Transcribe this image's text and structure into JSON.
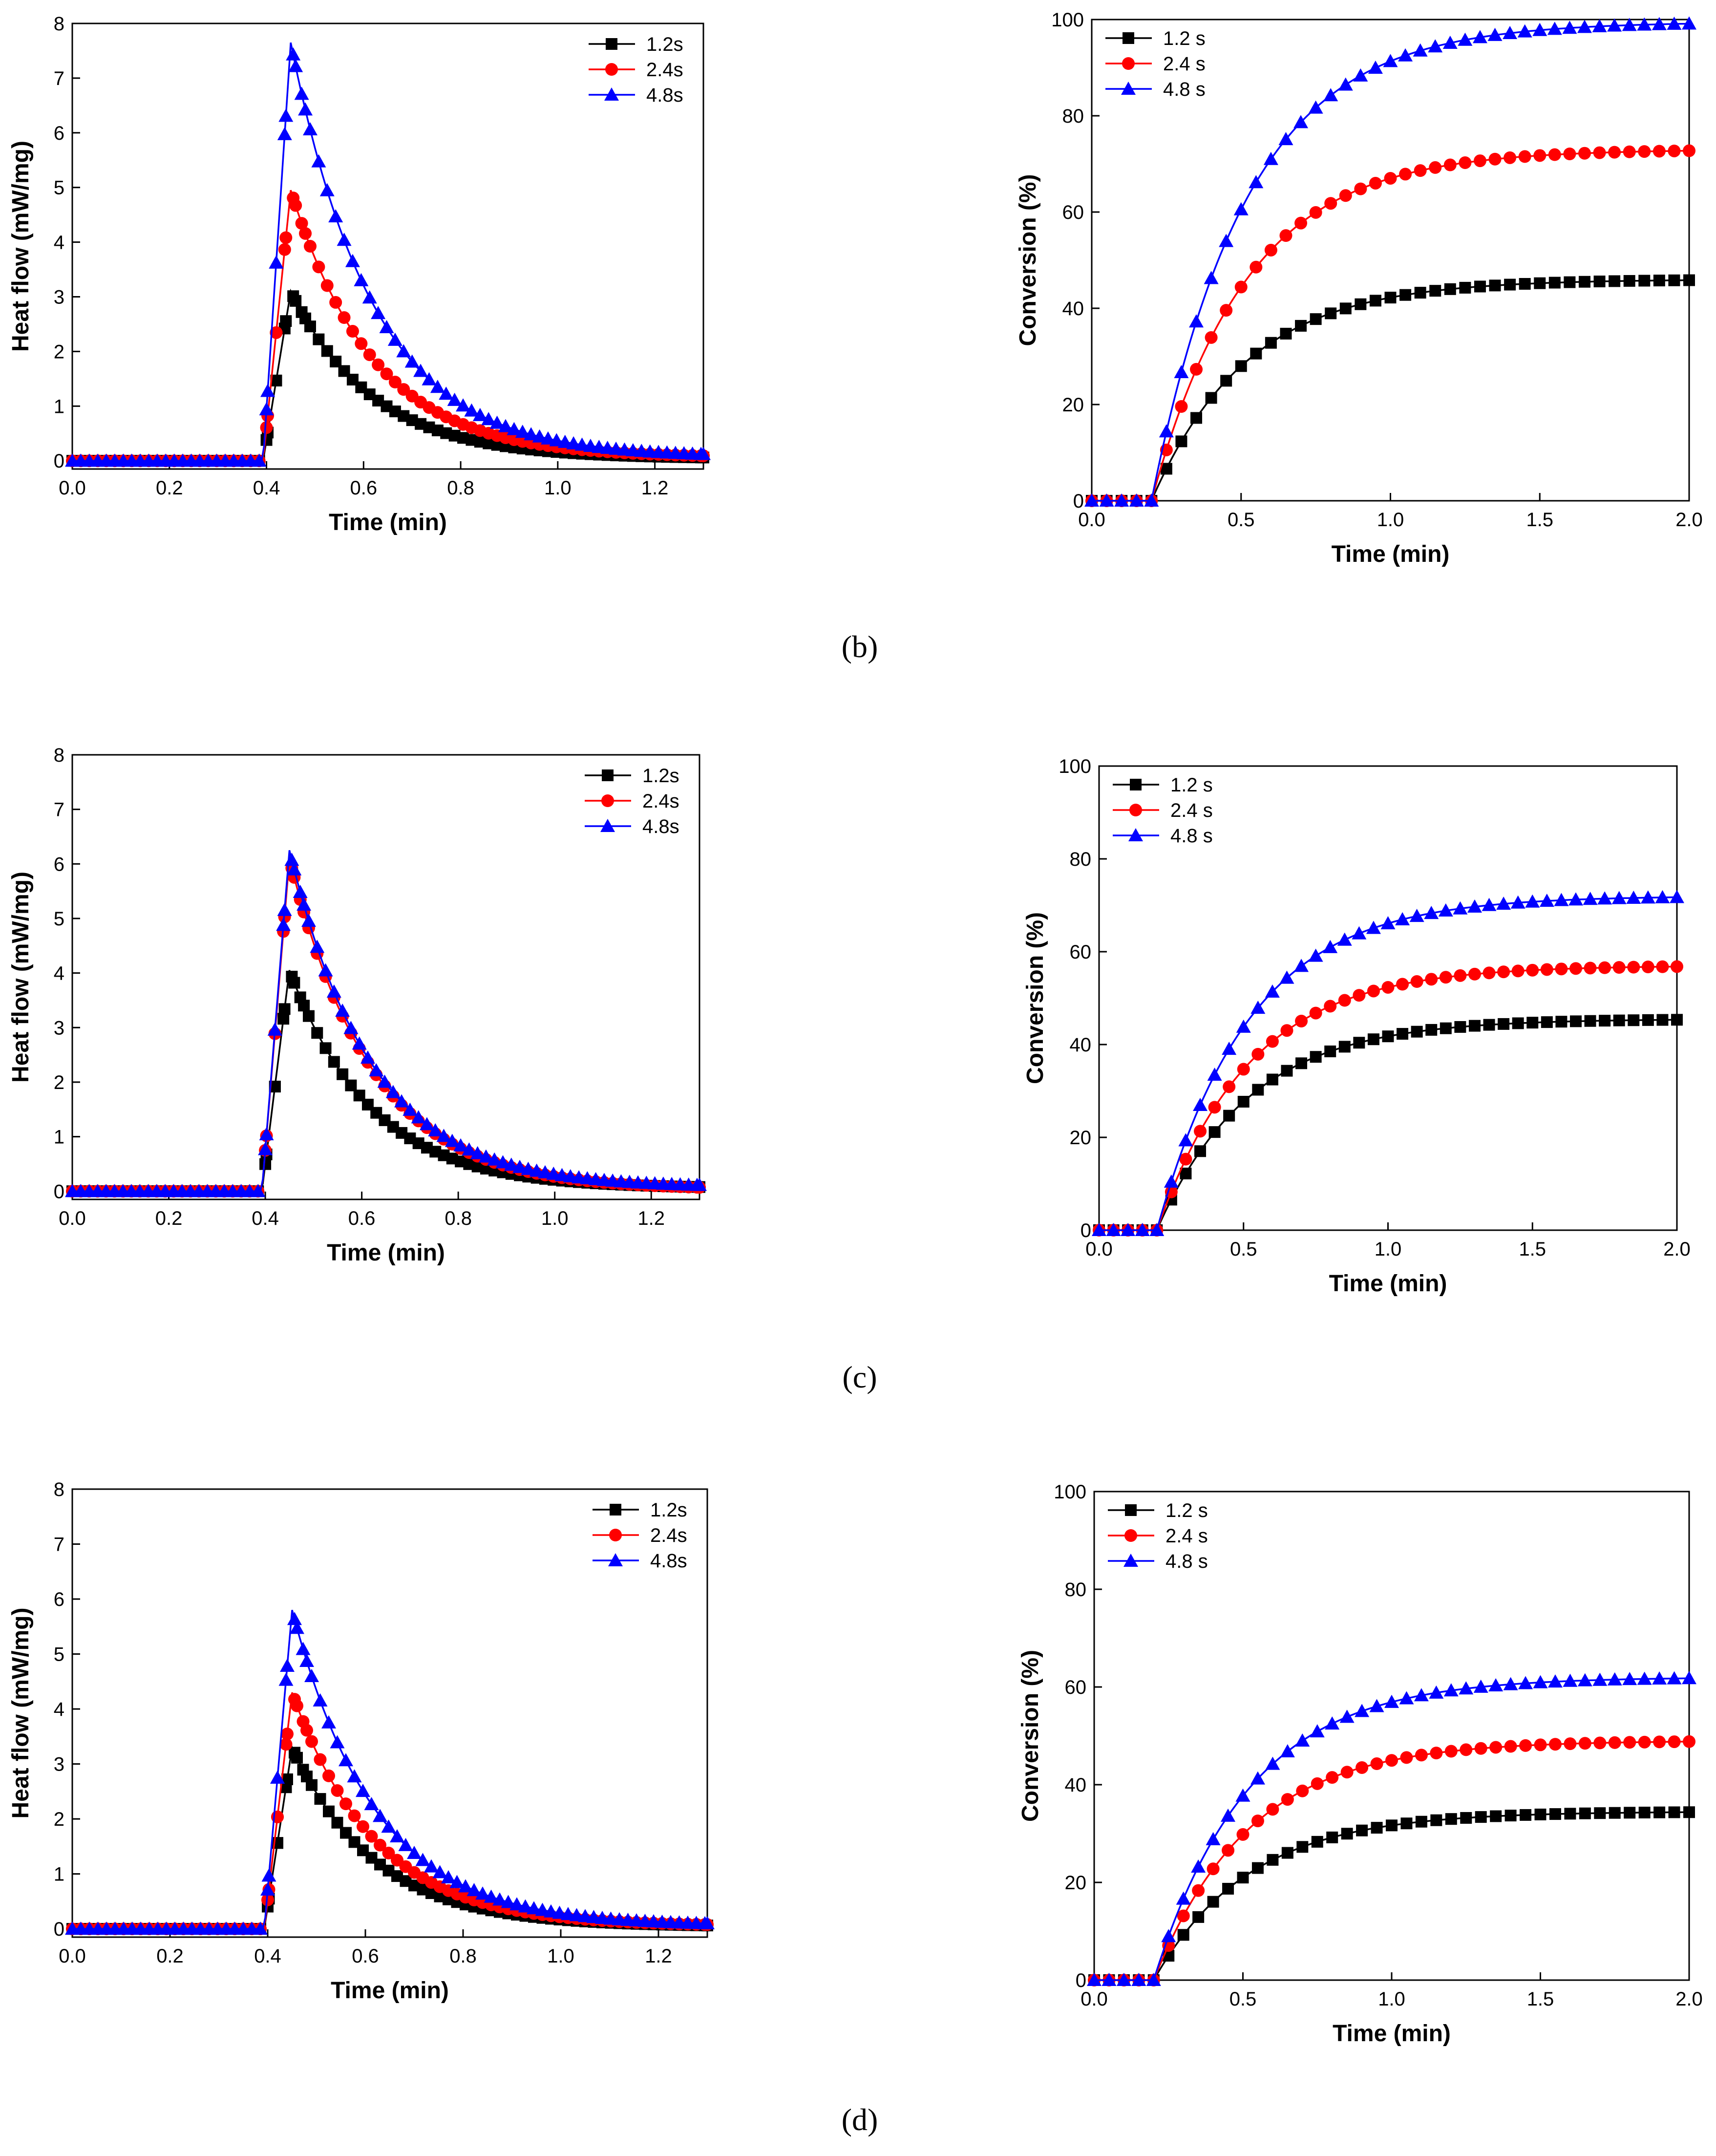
{
  "colors": {
    "s1": "#000000",
    "s2": "#ff0000",
    "s3": "#0000ff",
    "axis": "#000000"
  },
  "panel_labels": [
    "(b)",
    "(c)",
    "(d)"
  ],
  "chart_data": [
    {
      "type": "line",
      "panel": "(b)",
      "kind": "heat",
      "xlabel": "Time (min)",
      "ylabel": "Heat flow (mW/mg)",
      "xlim": [
        0,
        1.3
      ],
      "ylim": [
        -0.15,
        8
      ],
      "xticks": [
        0,
        0.2,
        0.4,
        0.6,
        0.8,
        1.0,
        1.2
      ],
      "xtick_labels": [
        "0.0",
        "0.2",
        "0.4",
        "0.6",
        "0.8",
        "1.0",
        "1.2"
      ],
      "yticks": [
        0,
        1,
        2,
        3,
        4,
        5,
        6,
        7,
        8
      ],
      "ytick_labels": [
        "0",
        "1",
        "2",
        "3",
        "4",
        "5",
        "6",
        "7",
        "8"
      ],
      "legend_position": "top-right",
      "series": [
        {
          "name": "1.2s",
          "marker": "square",
          "peak": 3.1,
          "tail": 0.04
        },
        {
          "name": "2.4s",
          "marker": "circle",
          "peak": 4.95,
          "tail": 0.06
        },
        {
          "name": "4.8s",
          "marker": "triangle",
          "peak": 7.65,
          "tail": 0.07
        }
      ]
    },
    {
      "type": "line",
      "panel": "(b)",
      "kind": "conv",
      "xlabel": "Time (min)",
      "ylabel": "Conversion (%)",
      "xlim": [
        0,
        2.0
      ],
      "ylim": [
        0,
        100
      ],
      "xticks": [
        0,
        0.5,
        1.0,
        1.5,
        2.0
      ],
      "xtick_labels": [
        "0.0",
        "0.5",
        "1.0",
        "1.5",
        "2.0"
      ],
      "yticks": [
        0,
        20,
        40,
        60,
        80,
        100
      ],
      "ytick_labels": [
        "0",
        "20",
        "40",
        "60",
        "80",
        "100"
      ],
      "legend_position": "top-left",
      "series": [
        {
          "name": "1.2 s",
          "marker": "square",
          "final": 46
        },
        {
          "name": "2.4 s",
          "marker": "circle",
          "final": 73
        },
        {
          "name": "4.8 s",
          "marker": "triangle",
          "final": 99.5
        }
      ]
    },
    {
      "type": "line",
      "panel": "(c)",
      "kind": "heat",
      "xlabel": "Time (min)",
      "ylabel": "Heat flow (mW/mg)",
      "xlim": [
        0,
        1.3
      ],
      "ylim": [
        -0.15,
        8
      ],
      "xticks": [
        0,
        0.2,
        0.4,
        0.6,
        0.8,
        1.0,
        1.2
      ],
      "xtick_labels": [
        "0.0",
        "0.2",
        "0.4",
        "0.6",
        "0.8",
        "1.0",
        "1.2"
      ],
      "yticks": [
        0,
        1,
        2,
        3,
        4,
        5,
        6,
        7,
        8
      ],
      "ytick_labels": [
        "0",
        "1",
        "2",
        "3",
        "4",
        "5",
        "6",
        "7",
        "8"
      ],
      "legend_position": "top-right",
      "series": [
        {
          "name": "1.2s",
          "marker": "square",
          "peak": 4.05,
          "tail": 0.05
        },
        {
          "name": "2.4s",
          "marker": "circle",
          "peak": 6.1,
          "tail": 0.03
        },
        {
          "name": "4.8s",
          "marker": "triangle",
          "peak": 6.25,
          "tail": 0.07
        }
      ]
    },
    {
      "type": "line",
      "panel": "(c)",
      "kind": "conv",
      "xlabel": "Time (min)",
      "ylabel": "Conversion (%)",
      "xlim": [
        0,
        2.0
      ],
      "ylim": [
        0,
        100
      ],
      "xticks": [
        0,
        0.5,
        1.0,
        1.5,
        2.0
      ],
      "xtick_labels": [
        "0.0",
        "0.5",
        "1.0",
        "1.5",
        "2.0"
      ],
      "yticks": [
        0,
        20,
        40,
        60,
        80,
        100
      ],
      "ytick_labels": [
        "0",
        "20",
        "40",
        "60",
        "80",
        "100"
      ],
      "legend_position": "top-left",
      "series": [
        {
          "name": "1.2 s",
          "marker": "square",
          "final": 45.5
        },
        {
          "name": "2.4 s",
          "marker": "circle",
          "final": 57
        },
        {
          "name": "4.8 s",
          "marker": "triangle",
          "final": 72
        }
      ]
    },
    {
      "type": "line",
      "panel": "(d)",
      "kind": "heat",
      "xlabel": "Time (min)",
      "ylabel": "Heat flow (mW/mg)",
      "xlim": [
        0,
        1.3
      ],
      "ylim": [
        -0.15,
        8
      ],
      "xticks": [
        0,
        0.2,
        0.4,
        0.6,
        0.8,
        1.0,
        1.2
      ],
      "xtick_labels": [
        "0.0",
        "0.2",
        "0.4",
        "0.6",
        "0.8",
        "1.0",
        "1.2"
      ],
      "yticks": [
        0,
        1,
        2,
        3,
        4,
        5,
        6,
        7,
        8
      ],
      "ytick_labels": [
        "0",
        "1",
        "2",
        "3",
        "4",
        "5",
        "6",
        "7",
        "8"
      ],
      "legend_position": "top-right",
      "series": [
        {
          "name": "1.2s",
          "marker": "square",
          "peak": 3.3,
          "tail": 0.04
        },
        {
          "name": "2.4s",
          "marker": "circle",
          "peak": 4.3,
          "tail": 0.05
        },
        {
          "name": "4.8s",
          "marker": "triangle",
          "peak": 5.8,
          "tail": 0.06
        }
      ]
    },
    {
      "type": "line",
      "panel": "(d)",
      "kind": "conv",
      "xlabel": "Time (min)",
      "ylabel": "Conversion (%)",
      "xlim": [
        0,
        2.0
      ],
      "ylim": [
        0,
        100
      ],
      "xticks": [
        0,
        0.5,
        1.0,
        1.5,
        2.0
      ],
      "xtick_labels": [
        "0.0",
        "0.5",
        "1.0",
        "1.5",
        "2.0"
      ],
      "yticks": [
        0,
        20,
        40,
        60,
        80,
        100
      ],
      "ytick_labels": [
        "0",
        "20",
        "40",
        "60",
        "80",
        "100"
      ],
      "legend_position": "top-left",
      "series": [
        {
          "name": "1.2 s",
          "marker": "square",
          "final": 34.5
        },
        {
          "name": "2.4 s",
          "marker": "circle",
          "final": 49
        },
        {
          "name": "4.8 s",
          "marker": "triangle",
          "final": 62
        }
      ]
    }
  ]
}
